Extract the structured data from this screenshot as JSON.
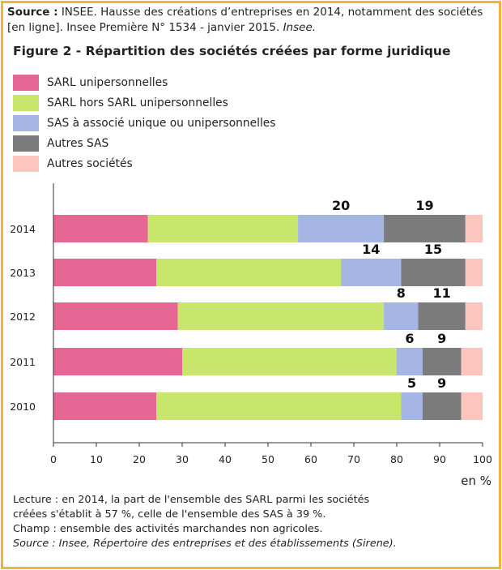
{
  "source": {
    "prefix": "Source :",
    "text": " INSEE. Hausse des créations d’entreprises en 2014, notamment des sociétés [en ligne]. Insee Première N° 1534 - janvier 2015. ",
    "italic": "Insee."
  },
  "colors": {
    "sarl_uni": "#e66694",
    "sarl_hors": "#c8e56c",
    "sas_uni": "#a6b6e4",
    "autres_sas": "#7b7b7b",
    "autres_societes": "#fcc5bd",
    "border": "#f1b33a"
  },
  "chart_data": {
    "type": "bar",
    "orientation": "horizontal",
    "stacked": true,
    "title": "Figure 2 - Répartition des sociétés créées par forme juridique",
    "xlabel": "en %",
    "xlim": [
      0,
      100
    ],
    "xticks": [
      "0",
      "10",
      "20",
      "30",
      "40",
      "50",
      "60",
      "70",
      "80",
      "90",
      "100"
    ],
    "categories": [
      "2014",
      "2013",
      "2012",
      "2011",
      "2010"
    ],
    "series": [
      {
        "name": "SARL unipersonnelles",
        "color_key": "sarl_uni",
        "values": [
          22,
          24,
          29,
          30,
          24
        ]
      },
      {
        "name": "SARL hors SARL unipersonnelles",
        "color_key": "sarl_hors",
        "values": [
          35,
          43,
          48,
          50,
          57
        ]
      },
      {
        "name": "SAS à associé unique ou unipersonnelles",
        "color_key": "sas_uni",
        "values": [
          20,
          14,
          8,
          6,
          5
        ]
      },
      {
        "name": "Autres SAS",
        "color_key": "autres_sas",
        "values": [
          19,
          15,
          11,
          9,
          9
        ]
      },
      {
        "name": "Autres sociétés",
        "color_key": "autres_societes",
        "values": [
          4,
          4,
          4,
          5,
          5
        ]
      }
    ],
    "data_labels": [
      {
        "category": "2014",
        "series": "SAS à associé unique ou unipersonnelles",
        "text": "20"
      },
      {
        "category": "2014",
        "series": "Autres SAS",
        "text": "19"
      },
      {
        "category": "2013",
        "series": "SAS à associé unique ou unipersonnelles",
        "text": "14"
      },
      {
        "category": "2013",
        "series": "Autres SAS",
        "text": "15"
      },
      {
        "category": "2012",
        "series": "SAS à associé unique ou unipersonnelles",
        "text": "8"
      },
      {
        "category": "2012",
        "series": "Autres SAS",
        "text": "11"
      },
      {
        "category": "2011",
        "series": "SAS à associé unique ou unipersonnelles",
        "text": "6"
      },
      {
        "category": "2011",
        "series": "Autres SAS",
        "text": "9"
      },
      {
        "category": "2010",
        "series": "SAS à associé unique ou unipersonnelles",
        "text": "5"
      },
      {
        "category": "2010",
        "series": "Autres SAS",
        "text": "9"
      }
    ]
  },
  "footer": {
    "line1": "Lecture : en 2014, la part de l'ensemble des SARL parmi les sociétés",
    "line2": "créées s'établit à 57 %, celle de l'ensemble des SAS à 39 %.",
    "line3": "Champ : ensemble des activités marchandes non agricoles.",
    "line4": "Source : Insee, Répertoire des entreprises et des établissements (Sirene)."
  }
}
